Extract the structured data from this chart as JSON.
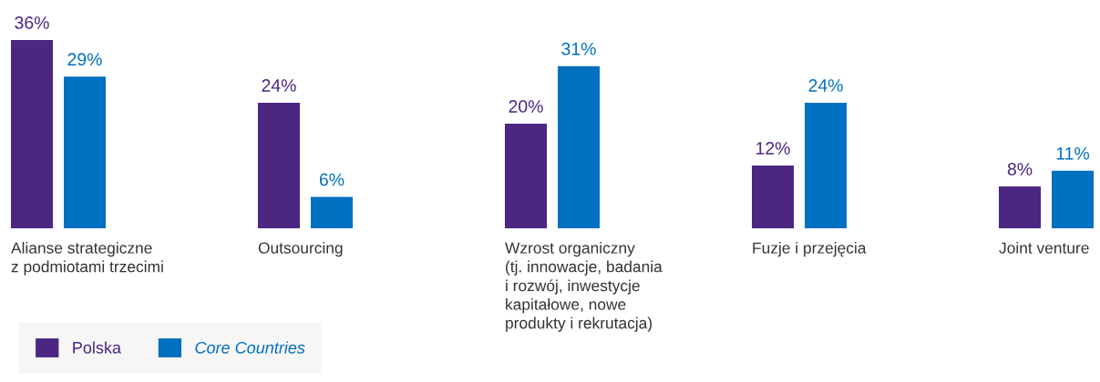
{
  "chart_data": {
    "type": "bar",
    "categories": [
      "Alianse strategiczne\nz podmiotami trzecimi",
      "Outsourcing",
      "Wzrost organiczny\n(tj. innowacje, badania\ni rozwój, inwestycje\nkapitałowe, nowe\nprodukty i rekrutacja)",
      "Fuzje i przejęcia",
      "Joint venture"
    ],
    "series": [
      {
        "name": "Polska",
        "color": "#4b2683",
        "values": [
          36,
          24,
          20,
          12,
          8
        ],
        "value_labels": [
          "36%",
          "24%",
          "20%",
          "12%",
          "8%"
        ]
      },
      {
        "name": "Core Countries",
        "color": "#0070c0",
        "values": [
          29,
          6,
          31,
          24,
          11
        ],
        "value_labels": [
          "29%",
          "6%",
          "31%",
          "24%",
          "11%"
        ]
      }
    ],
    "legend": "bottom left"
  }
}
